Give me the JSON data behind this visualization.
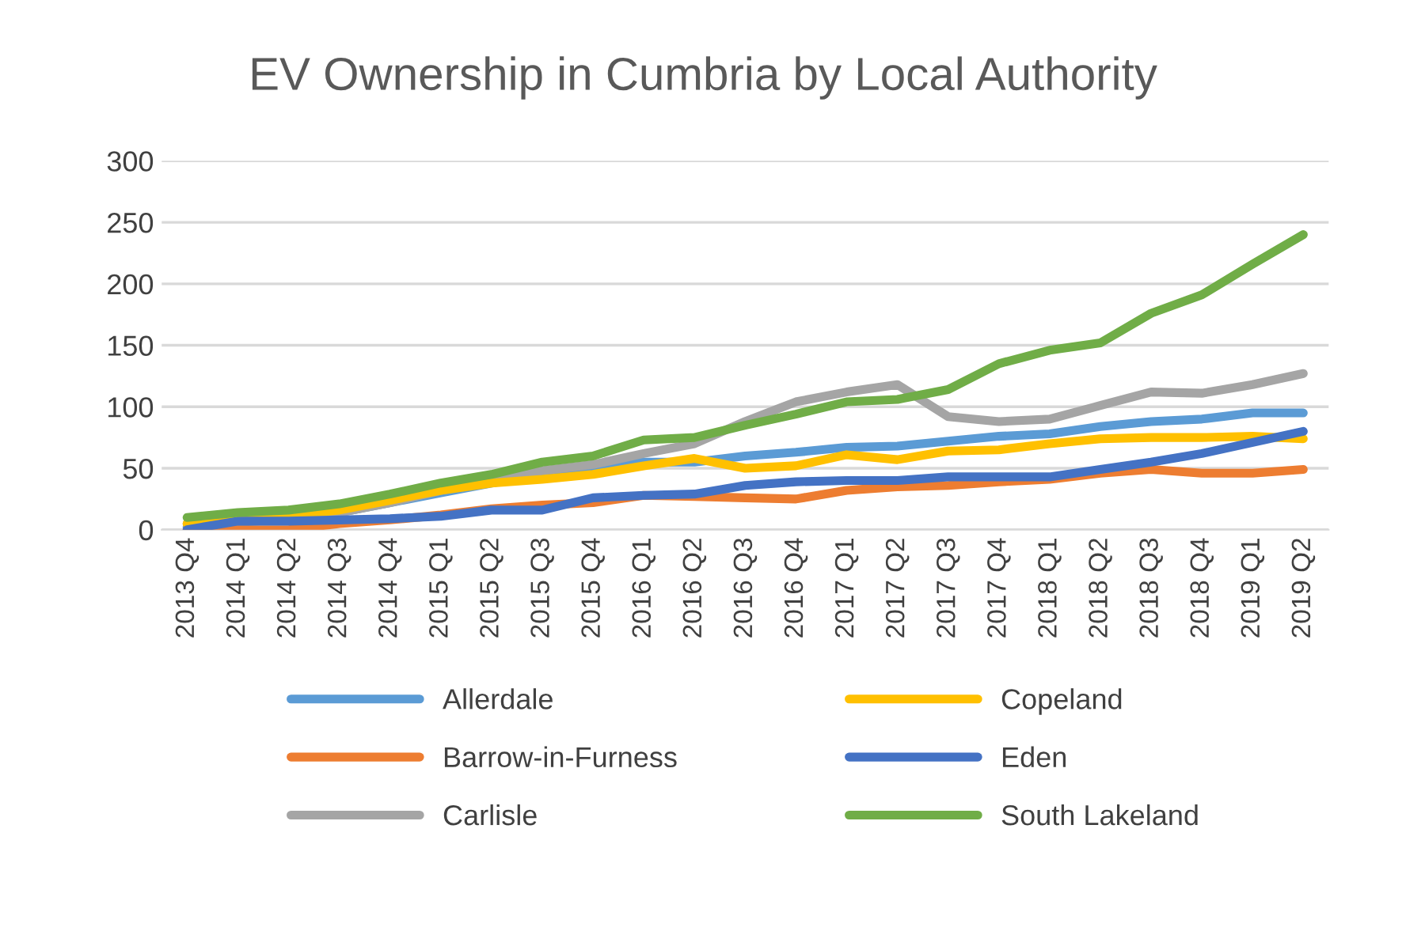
{
  "chart_data": {
    "type": "line",
    "title": "EV Ownership in Cumbria by Local Authority",
    "categories": [
      "2013 Q4",
      "2014 Q1",
      "2014 Q2",
      "2014 Q3",
      "2014 Q4",
      "2015 Q1",
      "2015 Q2",
      "2015 Q3",
      "2015 Q4",
      "2016 Q1",
      "2016 Q2",
      "2016 Q3",
      "2016 Q4",
      "2017 Q1",
      "2017 Q2",
      "2017 Q3",
      "2017 Q4",
      "2018 Q1",
      "2018 Q2",
      "2018 Q3",
      "2018 Q4",
      "2019 Q1",
      "2019 Q2"
    ],
    "series": [
      {
        "name": "Allerdale",
        "color": "#5b9bd5",
        "values": [
          2,
          6,
          9,
          14,
          22,
          30,
          38,
          45,
          50,
          55,
          55,
          60,
          63,
          67,
          68,
          72,
          76,
          78,
          84,
          88,
          90,
          95,
          95
        ]
      },
      {
        "name": "Barrow-in-Furness",
        "color": "#ed7d31",
        "values": [
          0,
          0,
          0,
          5,
          8,
          12,
          17,
          20,
          22,
          28,
          27,
          26,
          25,
          32,
          35,
          36,
          39,
          41,
          46,
          49,
          46,
          46,
          49
        ]
      },
      {
        "name": "Carlisle",
        "color": "#a5a5a5",
        "values": [
          5,
          8,
          10,
          14,
          22,
          32,
          40,
          48,
          53,
          62,
          70,
          88,
          104,
          112,
          118,
          92,
          88,
          90,
          101,
          112,
          111,
          118,
          127
        ]
      },
      {
        "name": "Copeland",
        "color": "#ffc000",
        "values": [
          5,
          8,
          12,
          16,
          24,
          32,
          38,
          41,
          45,
          52,
          58,
          50,
          52,
          61,
          57,
          64,
          65,
          70,
          74,
          75,
          75,
          76,
          74
        ]
      },
      {
        "name": "Eden",
        "color": "#4472c4",
        "values": [
          0,
          7,
          7,
          8,
          9,
          11,
          16,
          16,
          26,
          28,
          29,
          36,
          39,
          40,
          40,
          43,
          43,
          43,
          49,
          55,
          62,
          71,
          80
        ]
      },
      {
        "name": "South Lakeland",
        "color": "#70ad47",
        "values": [
          10,
          14,
          16,
          21,
          29,
          38,
          45,
          55,
          60,
          73,
          75,
          85,
          94,
          104,
          106,
          114,
          135,
          146,
          152,
          176,
          191,
          216,
          240
        ]
      }
    ],
    "ylim": [
      0,
      300
    ],
    "yticks": [
      0,
      50,
      100,
      150,
      200,
      250,
      300
    ],
    "grid": "y",
    "legend": "bottom",
    "marker": "none",
    "line_style": "solid"
  }
}
